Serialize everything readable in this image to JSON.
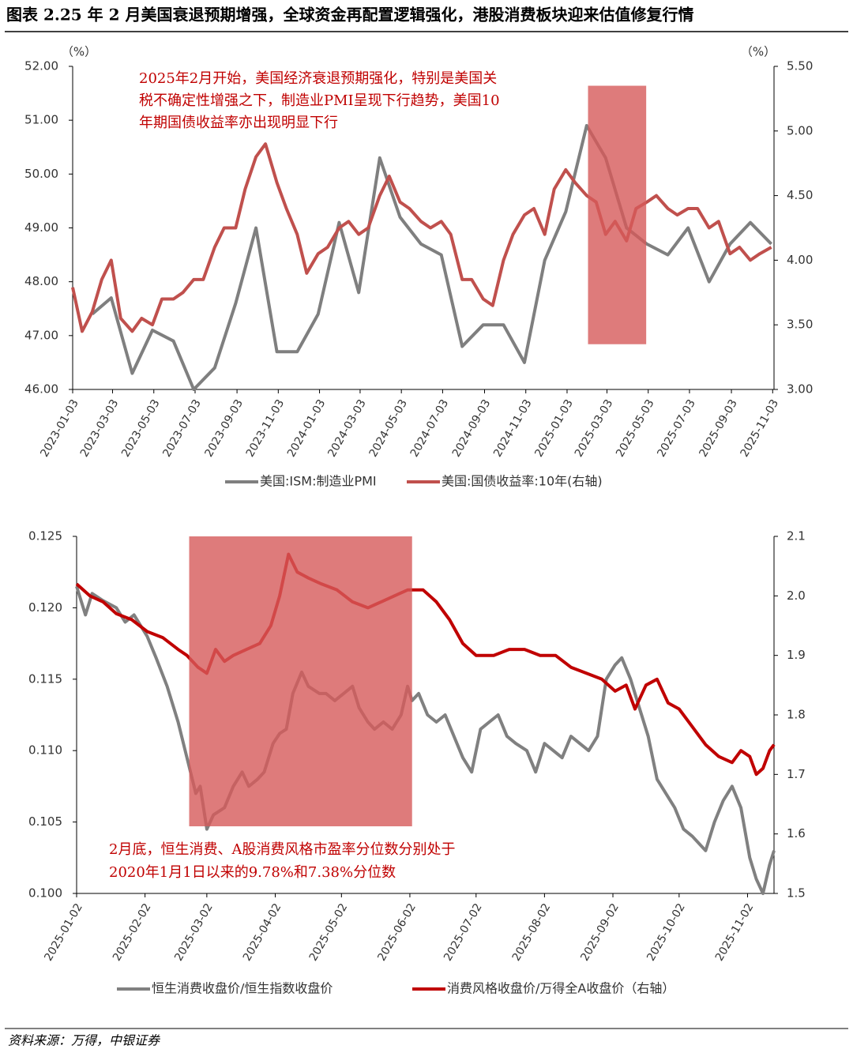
{
  "title": "图表 2.25 年 2 月美国衰退预期增强，全球资金再配置逻辑强化，港股消费板块迎来估值修复行情",
  "source": "资料来源：万得，中银证券",
  "chart_data": [
    {
      "type": "line",
      "y_unit": "（%）",
      "y2_unit": "（%）",
      "annotation": [
        "2025年2月开始，美国经济衰退预期强化，特别是美国关",
        "税不确定性增强之下，制造业PMI呈现下行趋势，美国10",
        "年期国债收益率亦出现明显下行"
      ],
      "highlight": {
        "x": [
          "2025-02-03",
          "2025-04-30"
        ],
        "y2": [
          3.35,
          5.35
        ],
        "color": "#d65a5a"
      },
      "xlim": [
        "2023-01-03",
        "2025-11-05"
      ],
      "xticks": [
        "2023-01-03",
        "2023-03-03",
        "2023-05-03",
        "2023-07-03",
        "2023-09-03",
        "2023-11-03",
        "2024-01-03",
        "2024-03-03",
        "2024-05-03",
        "2024-07-03",
        "2024-09-03",
        "2024-11-03",
        "2025-01-03",
        "2025-03-03",
        "2025-05-03",
        "2025-07-03",
        "2025-09-03",
        "2025-11-03"
      ],
      "ylim": [
        46,
        52
      ],
      "yticks": [
        {
          "value": 46,
          "label": "46.00"
        },
        {
          "value": 47,
          "label": "47.00"
        },
        {
          "value": 48,
          "label": "48.00"
        },
        {
          "value": 49,
          "label": "49.00"
        },
        {
          "value": 50,
          "label": "50.00"
        },
        {
          "value": 51,
          "label": "51.00"
        },
        {
          "value": 52,
          "label": "52.00"
        }
      ],
      "y2lim": [
        3,
        5.5
      ],
      "y2ticks": [
        {
          "value": 3,
          "label": "3.00"
        },
        {
          "value": 3.5,
          "label": "3.50"
        },
        {
          "value": 4,
          "label": "4.00"
        },
        {
          "value": 4.5,
          "label": "4.50"
        },
        {
          "value": 5,
          "label": "5.00"
        },
        {
          "value": 5.5,
          "label": "5.50"
        }
      ],
      "series": [
        {
          "name": "美国:ISM:制造业PMI",
          "color": "#7f7f7f",
          "axis": "y",
          "x": [
            "2023-02-01",
            "2023-03-01",
            "2023-04-01",
            "2023-05-01",
            "2023-06-01",
            "2023-07-01",
            "2023-08-01",
            "2023-09-01",
            "2023-10-01",
            "2023-11-01",
            "2023-12-01",
            "2024-01-01",
            "2024-02-01",
            "2024-03-01",
            "2024-04-01",
            "2024-05-01",
            "2024-06-01",
            "2024-07-01",
            "2024-08-01",
            "2024-09-01",
            "2024-10-01",
            "2024-11-01",
            "2024-12-01",
            "2025-01-01",
            "2025-02-01",
            "2025-03-01",
            "2025-04-01",
            "2025-05-01",
            "2025-06-01",
            "2025-07-01",
            "2025-08-01",
            "2025-09-01",
            "2025-10-01",
            "2025-11-01"
          ],
          "values": [
            47.4,
            47.7,
            46.3,
            47.1,
            46.9,
            46.0,
            46.4,
            47.6,
            49.0,
            46.7,
            46.7,
            47.4,
            49.1,
            47.8,
            50.3,
            49.2,
            48.7,
            48.5,
            46.8,
            47.2,
            47.2,
            46.5,
            48.4,
            49.3,
            50.9,
            50.3,
            49.0,
            48.7,
            48.5,
            49.0,
            48.0,
            48.7,
            49.1,
            48.7
          ]
        },
        {
          "name": "美国:国债收益率:10年(右轴)",
          "color": "#c0504d",
          "axis": "y2",
          "x": [
            "2023-01-03",
            "2023-01-17",
            "2023-02-01",
            "2023-02-15",
            "2023-03-01",
            "2023-03-15",
            "2023-04-01",
            "2023-04-15",
            "2023-05-01",
            "2023-05-15",
            "2023-06-01",
            "2023-06-15",
            "2023-07-01",
            "2023-07-15",
            "2023-08-01",
            "2023-08-15",
            "2023-09-01",
            "2023-09-15",
            "2023-10-01",
            "2023-10-15",
            "2023-11-01",
            "2023-11-15",
            "2023-12-01",
            "2023-12-15",
            "2024-01-01",
            "2024-01-15",
            "2024-02-01",
            "2024-02-15",
            "2024-03-01",
            "2024-03-15",
            "2024-04-01",
            "2024-04-15",
            "2024-05-01",
            "2024-05-15",
            "2024-06-01",
            "2024-06-15",
            "2024-07-01",
            "2024-07-15",
            "2024-08-01",
            "2024-08-15",
            "2024-09-01",
            "2024-09-15",
            "2024-10-01",
            "2024-10-15",
            "2024-11-01",
            "2024-11-15",
            "2024-12-01",
            "2024-12-15",
            "2025-01-01",
            "2025-01-15",
            "2025-02-01",
            "2025-02-15",
            "2025-03-01",
            "2025-03-15",
            "2025-04-01",
            "2025-04-15",
            "2025-05-01",
            "2025-05-15",
            "2025-06-01",
            "2025-06-15",
            "2025-07-01",
            "2025-07-15",
            "2025-08-01",
            "2025-08-15",
            "2025-09-01",
            "2025-09-15",
            "2025-10-01",
            "2025-10-15",
            "2025-11-01"
          ],
          "values": [
            3.79,
            3.45,
            3.6,
            3.85,
            4.0,
            3.55,
            3.45,
            3.55,
            3.5,
            3.7,
            3.7,
            3.75,
            3.85,
            3.85,
            4.1,
            4.25,
            4.25,
            4.55,
            4.8,
            4.9,
            4.6,
            4.4,
            4.2,
            3.9,
            4.05,
            4.1,
            4.25,
            4.3,
            4.2,
            4.25,
            4.5,
            4.65,
            4.45,
            4.4,
            4.3,
            4.25,
            4.3,
            4.2,
            3.85,
            3.85,
            3.7,
            3.65,
            4.0,
            4.2,
            4.35,
            4.4,
            4.2,
            4.55,
            4.7,
            4.6,
            4.5,
            4.45,
            4.2,
            4.3,
            4.15,
            4.4,
            4.45,
            4.5,
            4.4,
            4.35,
            4.4,
            4.4,
            4.25,
            4.3,
            4.05,
            4.1,
            4.0,
            4.05,
            4.1
          ]
        }
      ]
    },
    {
      "type": "line",
      "annotation": [
        "2月底，恒生消费、A股消费风格市盈率分位数分别处于",
        "2020年1月1日以来的9.78%和7.38%分位数"
      ],
      "highlight": {
        "x": [
          "2025-02-22",
          "2025-06-03"
        ],
        "y": [
          0.1047,
          0.125
        ],
        "color": "#d65a5a"
      },
      "xlim": [
        "2025-01-02",
        "2025-11-14"
      ],
      "xticks": [
        "2025-01-02",
        "2025-02-02",
        "2025-03-02",
        "2025-04-02",
        "2025-05-02",
        "2025-06-02",
        "2025-07-02",
        "2025-08-02",
        "2025-09-02",
        "2025-10-02",
        "2025-11-02"
      ],
      "ylim": [
        0.1,
        0.125
      ],
      "yticks": [
        {
          "value": 0.1,
          "label": "0.100"
        },
        {
          "value": 0.105,
          "label": "0.105"
        },
        {
          "value": 0.11,
          "label": "0.110"
        },
        {
          "value": 0.115,
          "label": "0.115"
        },
        {
          "value": 0.12,
          "label": "0.120"
        },
        {
          "value": 0.125,
          "label": "0.125"
        }
      ],
      "y2lim": [
        1.5,
        2.1
      ],
      "y2ticks": [
        1.5,
        1.6,
        1.7,
        1.8,
        1.9,
        {
          "value": 2,
          "label": "2.0"
        },
        2.1
      ],
      "series": [
        {
          "name": "恒生消费收盘价/恒生指数收盘价",
          "color": "#808080",
          "axis": "y",
          "x": [
            "2025-01-02",
            "2025-01-06",
            "2025-01-09",
            "2025-01-14",
            "2025-01-20",
            "2025-01-24",
            "2025-01-28",
            "2025-02-03",
            "2025-02-07",
            "2025-02-12",
            "2025-02-17",
            "2025-02-21",
            "2025-02-25",
            "2025-02-27",
            "2025-03-02",
            "2025-03-05",
            "2025-03-10",
            "2025-03-14",
            "2025-03-18",
            "2025-03-21",
            "2025-03-25",
            "2025-03-28",
            "2025-04-01",
            "2025-04-04",
            "2025-04-07",
            "2025-04-10",
            "2025-04-14",
            "2025-04-17",
            "2025-04-22",
            "2025-04-25",
            "2025-04-29",
            "2025-05-03",
            "2025-05-07",
            "2025-05-10",
            "2025-05-14",
            "2025-05-17",
            "2025-05-21",
            "2025-05-25",
            "2025-05-29",
            "2025-06-01",
            "2025-06-03",
            "2025-06-06",
            "2025-06-10",
            "2025-06-14",
            "2025-06-18",
            "2025-06-22",
            "2025-06-26",
            "2025-06-30",
            "2025-07-04",
            "2025-07-08",
            "2025-07-12",
            "2025-07-16",
            "2025-07-20",
            "2025-07-25",
            "2025-07-29",
            "2025-08-02",
            "2025-08-06",
            "2025-08-10",
            "2025-08-14",
            "2025-08-18",
            "2025-08-22",
            "2025-08-26",
            "2025-08-30",
            "2025-09-03",
            "2025-09-06",
            "2025-09-10",
            "2025-09-14",
            "2025-09-18",
            "2025-09-22",
            "2025-09-26",
            "2025-09-30",
            "2025-10-04",
            "2025-10-08",
            "2025-10-14",
            "2025-10-18",
            "2025-10-22",
            "2025-10-26",
            "2025-10-30",
            "2025-11-03",
            "2025-11-06",
            "2025-11-09",
            "2025-11-12",
            "2025-11-14"
          ],
          "values": [
            0.1215,
            0.1195,
            0.121,
            0.1205,
            0.12,
            0.119,
            0.1195,
            0.118,
            0.1165,
            0.1145,
            0.112,
            0.1095,
            0.107,
            0.1075,
            0.1045,
            0.1055,
            0.106,
            0.1075,
            0.1085,
            0.1075,
            0.108,
            0.1085,
            0.1105,
            0.1112,
            0.1115,
            0.114,
            0.1155,
            0.1145,
            0.114,
            0.114,
            0.1135,
            0.114,
            0.1145,
            0.113,
            0.112,
            0.1115,
            0.112,
            0.1115,
            0.1125,
            0.1145,
            0.1135,
            0.114,
            0.1125,
            0.112,
            0.1125,
            0.111,
            0.1095,
            0.1085,
            0.1115,
            0.112,
            0.1125,
            0.111,
            0.1105,
            0.11,
            0.1085,
            0.1105,
            0.11,
            0.1095,
            0.111,
            0.1105,
            0.11,
            0.111,
            0.115,
            0.116,
            0.1165,
            0.115,
            0.113,
            0.111,
            0.108,
            0.107,
            0.106,
            0.1045,
            0.104,
            0.103,
            0.105,
            0.1065,
            0.1075,
            0.106,
            0.1025,
            0.101,
            0.1,
            0.102,
            0.103
          ]
        },
        {
          "name": "消费风格收盘价/万得全A收盘价（右轴）",
          "color": "#c00000",
          "axis": "y2",
          "x": [
            "2025-01-02",
            "2025-01-08",
            "2025-01-14",
            "2025-01-20",
            "2025-01-27",
            "2025-02-03",
            "2025-02-10",
            "2025-02-17",
            "2025-02-21",
            "2025-02-26",
            "2025-03-02",
            "2025-03-06",
            "2025-03-10",
            "2025-03-14",
            "2025-03-20",
            "2025-03-26",
            "2025-03-31",
            "2025-04-04",
            "2025-04-08",
            "2025-04-12",
            "2025-04-17",
            "2025-04-23",
            "2025-04-30",
            "2025-05-07",
            "2025-05-14",
            "2025-05-20",
            "2025-05-26",
            "2025-06-01",
            "2025-06-08",
            "2025-06-14",
            "2025-06-20",
            "2025-06-26",
            "2025-07-02",
            "2025-07-10",
            "2025-07-17",
            "2025-07-24",
            "2025-07-31",
            "2025-08-07",
            "2025-08-14",
            "2025-08-21",
            "2025-08-28",
            "2025-09-03",
            "2025-09-08",
            "2025-09-12",
            "2025-09-17",
            "2025-09-22",
            "2025-09-27",
            "2025-10-02",
            "2025-10-08",
            "2025-10-14",
            "2025-10-20",
            "2025-10-26",
            "2025-10-30",
            "2025-11-03",
            "2025-11-06",
            "2025-11-09",
            "2025-11-12",
            "2025-11-14"
          ],
          "values": [
            2.02,
            2.0,
            1.99,
            1.97,
            1.96,
            1.94,
            1.93,
            1.91,
            1.9,
            1.88,
            1.87,
            1.91,
            1.89,
            1.9,
            1.91,
            1.92,
            1.95,
            2.0,
            2.07,
            2.04,
            2.03,
            2.02,
            2.01,
            1.99,
            1.98,
            1.99,
            2.0,
            2.01,
            2.01,
            1.99,
            1.96,
            1.92,
            1.9,
            1.9,
            1.91,
            1.91,
            1.9,
            1.9,
            1.88,
            1.87,
            1.86,
            1.84,
            1.85,
            1.81,
            1.85,
            1.86,
            1.82,
            1.81,
            1.78,
            1.75,
            1.73,
            1.72,
            1.74,
            1.73,
            1.7,
            1.71,
            1.74,
            1.75
          ]
        }
      ]
    }
  ]
}
